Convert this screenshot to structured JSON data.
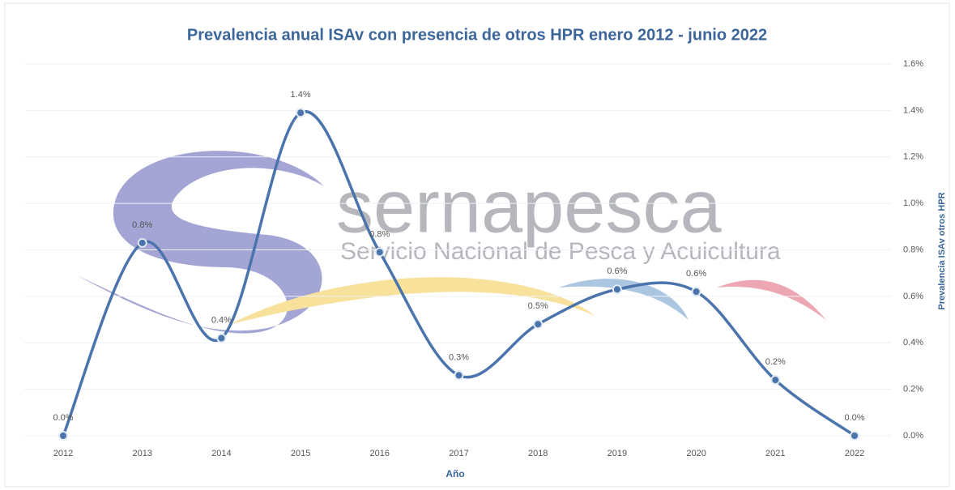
{
  "chart_data": {
    "type": "line",
    "title": "Prevalencia anual ISAv con presencia de otros HPR enero 2012 - junio 2022",
    "x_label": "Año",
    "y_label": "Prevalencia ISAv otros HPR",
    "categories": [
      "2012",
      "2013",
      "2014",
      "2015",
      "2016",
      "2017",
      "2018",
      "2019",
      "2020",
      "2021",
      "2022"
    ],
    "values": [
      0,
      0.83,
      0.42,
      1.39,
      0.79,
      0.26,
      0.48,
      0.63,
      0.62,
      0.24,
      0
    ],
    "value_labels": [
      "0.0%",
      "0.8%",
      "0.4%",
      "1.4%",
      "0.8%",
      "0.3%",
      "0.5%",
      "0.6%",
      "0.6%",
      "0.2%",
      "0.0%"
    ],
    "color": "#4a74ab",
    "ylim": [
      0,
      1.6
    ],
    "yticks": [
      {
        "value": 0,
        "label": "0.0%"
      },
      {
        "value": 0.2,
        "label": "0.2%"
      },
      {
        "value": 0.4,
        "label": "0.4%"
      },
      {
        "value": 0.6,
        "label": "0.6%"
      },
      {
        "value": 0.8,
        "label": "0.8%"
      },
      {
        "value": 1.0,
        "label": "1.0%"
      },
      {
        "value": 1.2,
        "label": "1.2%"
      },
      {
        "value": 1.4,
        "label": "1.4%"
      },
      {
        "value": 1.6,
        "label": "1.6%"
      }
    ],
    "grid": true,
    "y_axis_side": "right"
  },
  "watermark": {
    "name": "sernapesca",
    "tagline": "Servicio Nacional de Pesca y Acuicultura"
  }
}
